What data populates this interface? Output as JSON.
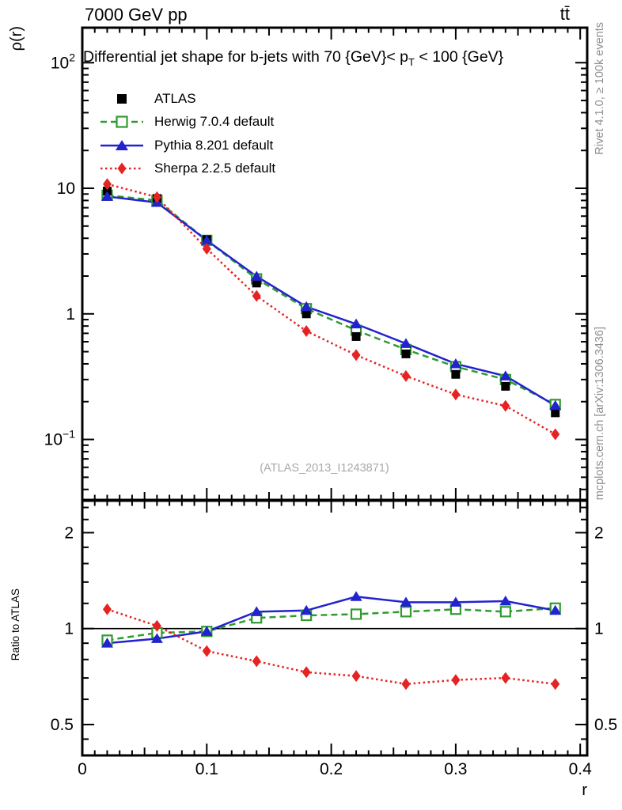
{
  "header": {
    "left_title": "7000 GeV pp",
    "right_title": "tt̄"
  },
  "plot_title": {
    "pre": "Differential jet shape for b-jets with 70 {GeV}< p",
    "sub": "T",
    "post": " < 100 {GeV}"
  },
  "side_notes": {
    "top_right": "Rivet 4.1.0, ≥ 100k events",
    "bottom_right": "mcplots.cern.ch [arXiv:1306.3436]",
    "watermark": "(ATLAS_2013_I1243871)"
  },
  "colors": {
    "atlas": "#000000",
    "herwig": "#2f9b2f",
    "pythia": "#2222cf",
    "sherpa": "#e62222",
    "gray_text": "#8f8f8f",
    "watermark_gray": "#a9a9a9",
    "frame": "#000000"
  },
  "legend": [
    {
      "label": "ATLAS",
      "marker": "square-filled",
      "color_key": "atlas",
      "line": "none"
    },
    {
      "label": "Herwig 7.0.4 default",
      "marker": "square-open",
      "color_key": "herwig",
      "line": "dashed"
    },
    {
      "label": "Pythia 8.201 default",
      "marker": "triangle-filled",
      "color_key": "pythia",
      "line": "solid"
    },
    {
      "label": "Sherpa 2.2.5 default",
      "marker": "diamond-filled",
      "color_key": "sherpa",
      "line": "dotted"
    }
  ],
  "chart_data": {
    "type": "line",
    "xlabel": "r",
    "x": [
      0.02,
      0.06,
      0.1,
      0.14,
      0.18,
      0.22,
      0.26,
      0.3,
      0.34,
      0.38
    ],
    "xlim": [
      0,
      0.4056
    ],
    "xticks": [
      {
        "v": 0,
        "label": "0"
      },
      {
        "v": 0.1,
        "label": "0.1"
      },
      {
        "v": 0.2,
        "label": "0.2"
      },
      {
        "v": 0.3,
        "label": "0.3"
      },
      {
        "v": 0.4,
        "label": "0.4"
      }
    ],
    "main_panel": {
      "ylabel": "ρ(r)",
      "yscale": "log",
      "ylim": [
        0.033,
        190
      ],
      "yticks": [
        {
          "v": 100,
          "base": "10",
          "exp": "2"
        },
        {
          "v": 10,
          "base": "10",
          "exp": ""
        },
        {
          "v": 1,
          "base": "1",
          "exp": ""
        },
        {
          "v": 0.1,
          "base": "10",
          "exp": "−1"
        }
      ],
      "series": [
        {
          "name": "ATLAS",
          "color_key": "atlas",
          "marker": "square-filled",
          "line": "none",
          "values": [
            9.5,
            8.3,
            3.9,
            1.76,
            1.0,
            0.66,
            0.48,
            0.33,
            0.265,
            0.163
          ]
        },
        {
          "name": "Herwig 7.0.4 default",
          "color_key": "herwig",
          "marker": "square-open",
          "line": "dashed",
          "values": [
            8.8,
            8.0,
            3.85,
            1.9,
            1.1,
            0.74,
            0.52,
            0.38,
            0.3,
            0.19
          ]
        },
        {
          "name": "Pythia 8.201 default",
          "color_key": "pythia",
          "marker": "triangle-filled",
          "line": "solid",
          "values": [
            8.6,
            7.7,
            3.85,
            1.99,
            1.14,
            0.83,
            0.58,
            0.4,
            0.32,
            0.186
          ]
        },
        {
          "name": "Sherpa 2.2.5 default",
          "color_key": "sherpa",
          "marker": "diamond-filled",
          "line": "dotted",
          "values": [
            10.8,
            8.5,
            3.3,
            1.39,
            0.73,
            0.47,
            0.32,
            0.228,
            0.185,
            0.11
          ]
        }
      ]
    },
    "ratio_panel": {
      "ylabel": "Ratio to ATLAS",
      "yscale": "log",
      "ylim": [
        0.4,
        2.52
      ],
      "baseline": 1,
      "yticks": [
        {
          "v": 2,
          "label": "2"
        },
        {
          "v": 1,
          "label": "1"
        },
        {
          "v": 0.5,
          "label": "0.5"
        }
      ],
      "series": [
        {
          "name": "Herwig 7.0.4 default",
          "color_key": "herwig",
          "marker": "square-open",
          "line": "dashed",
          "values": [
            0.92,
            0.97,
            0.98,
            1.08,
            1.1,
            1.11,
            1.13,
            1.15,
            1.13,
            1.16
          ]
        },
        {
          "name": "Pythia 8.201 default",
          "color_key": "pythia",
          "marker": "triangle-filled",
          "line": "solid",
          "values": [
            0.9,
            0.93,
            0.98,
            1.13,
            1.14,
            1.26,
            1.21,
            1.21,
            1.22,
            1.14
          ]
        },
        {
          "name": "Sherpa 2.2.5 default",
          "color_key": "sherpa",
          "marker": "diamond-filled",
          "line": "dotted",
          "values": [
            1.15,
            1.02,
            0.85,
            0.79,
            0.73,
            0.71,
            0.67,
            0.69,
            0.7,
            0.67
          ]
        }
      ]
    }
  }
}
